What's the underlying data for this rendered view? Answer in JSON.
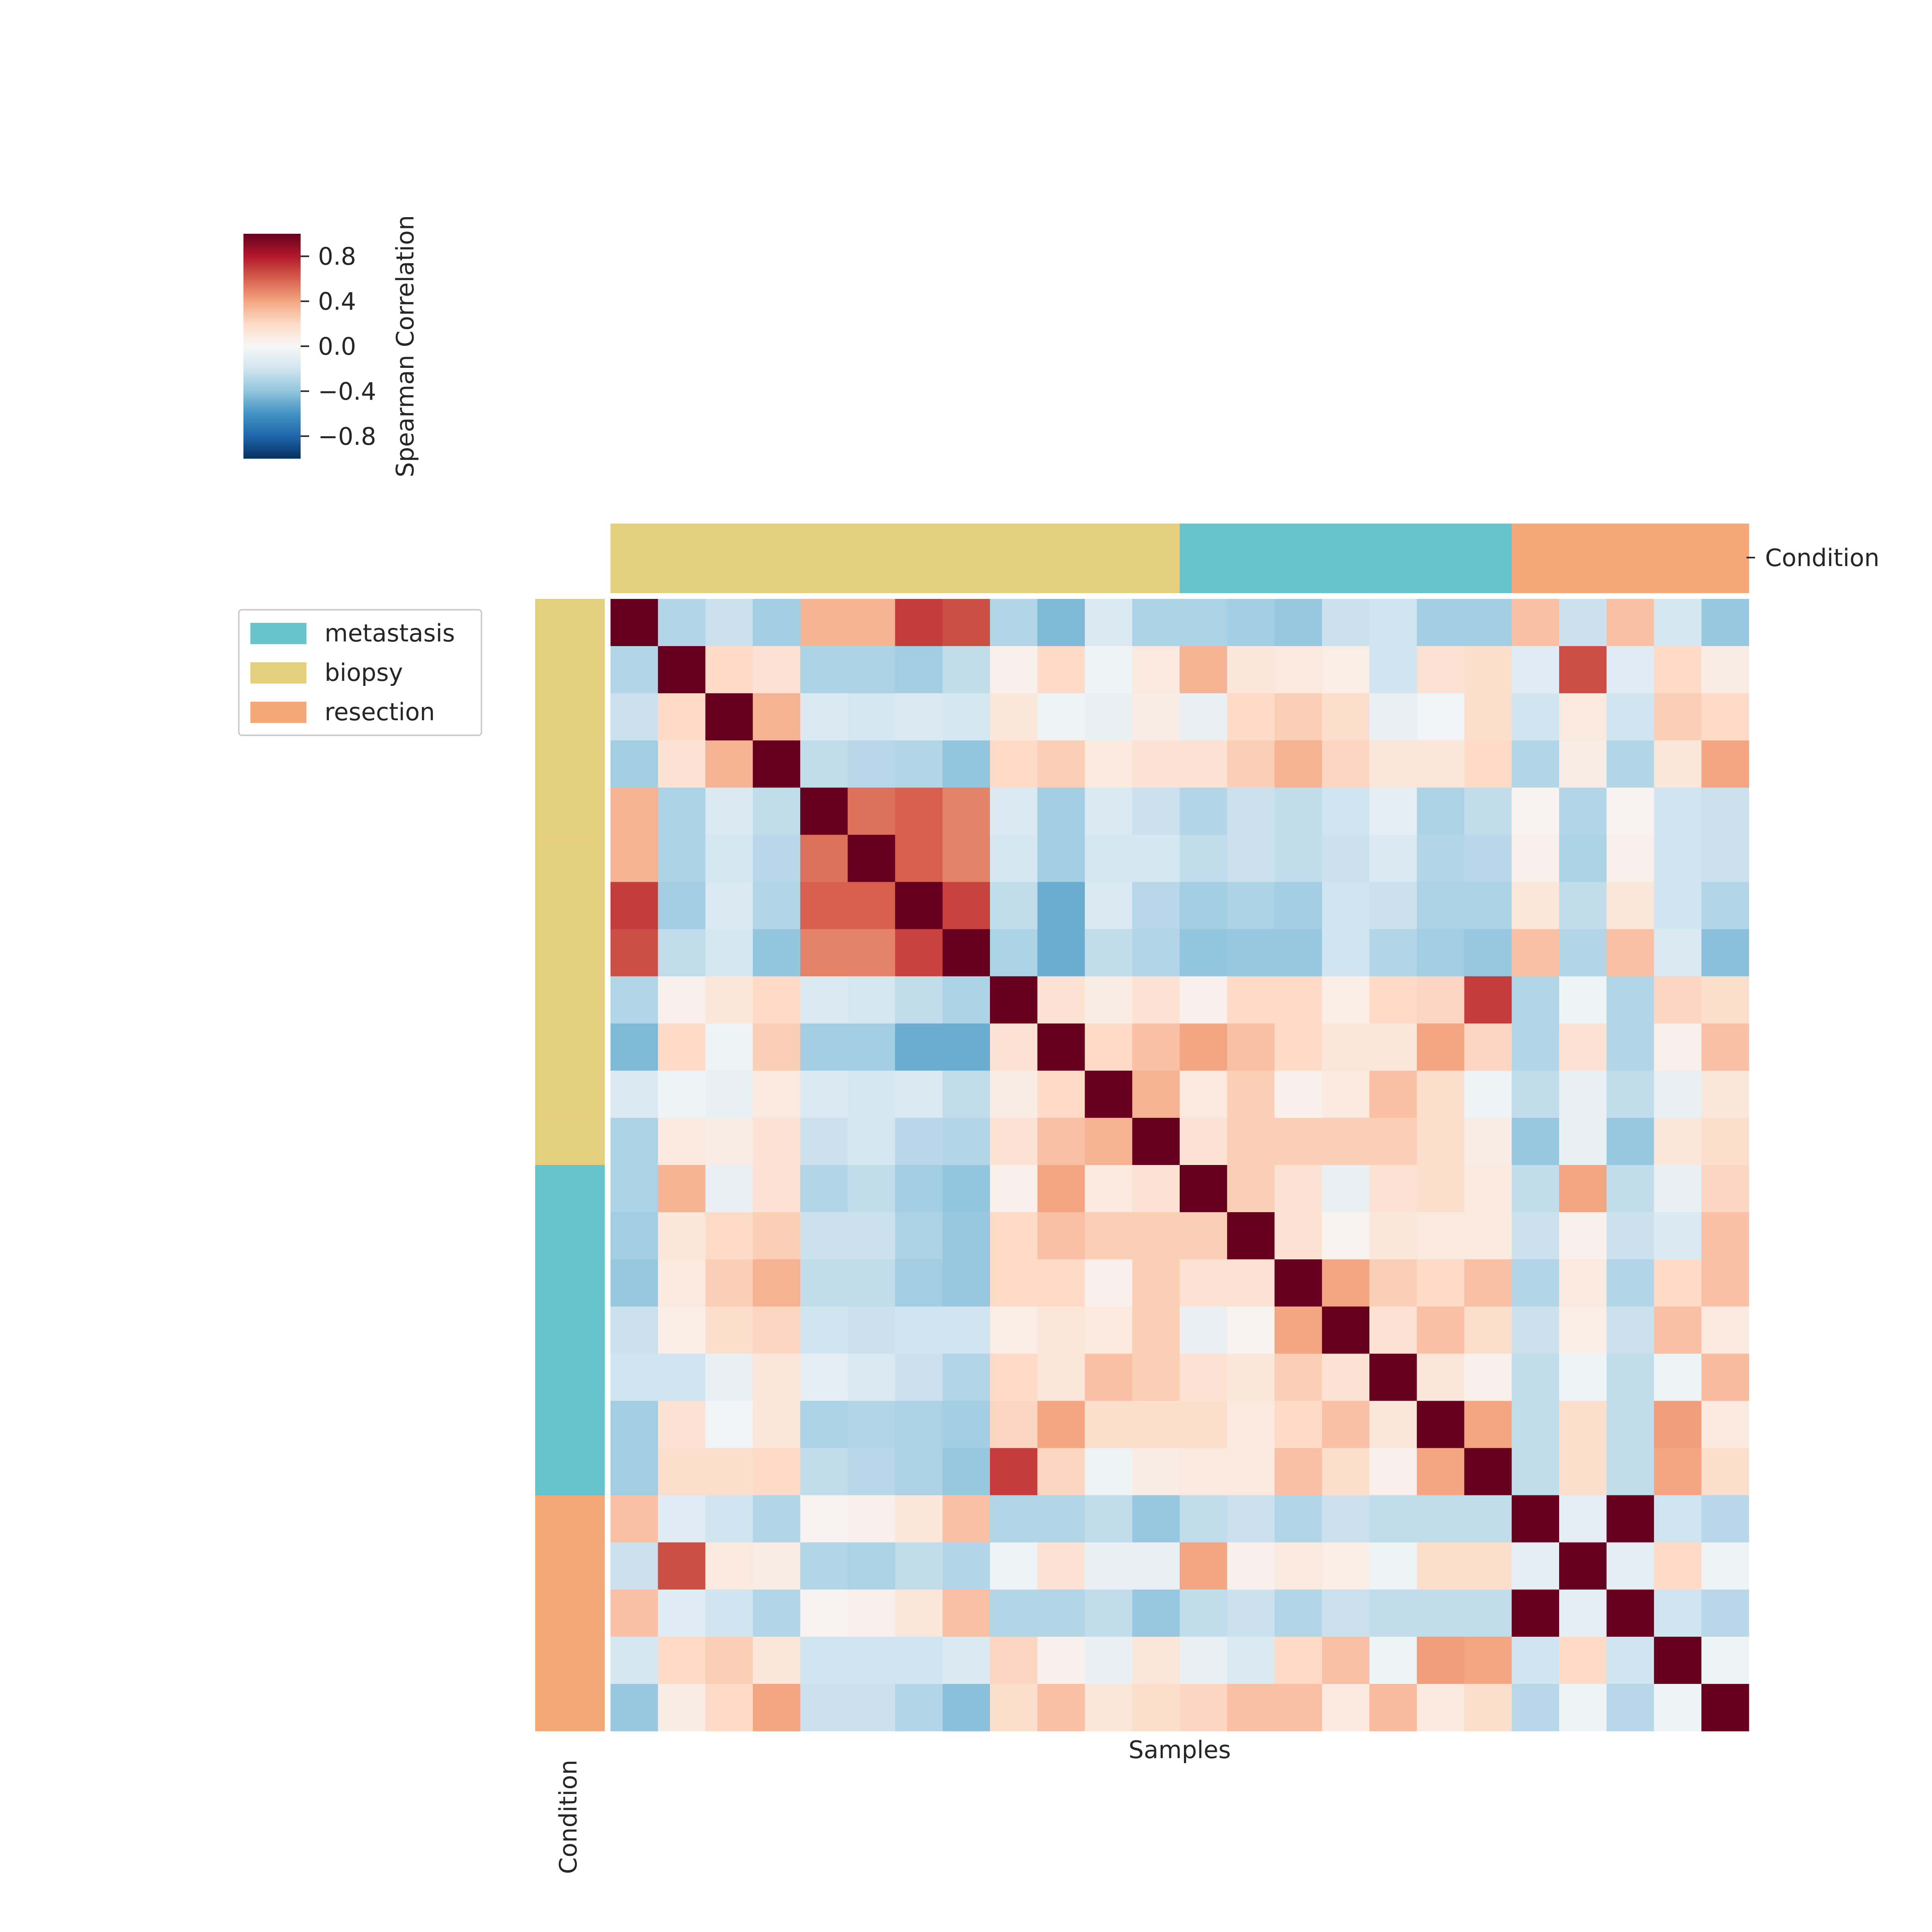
{
  "chart_data": {
    "type": "heatmap",
    "title": "",
    "xlabel": "Samples",
    "ylabel": "",
    "row_colors_label": "Condition",
    "col_colors_label": "Condition",
    "colorbar": {
      "label": "Spearman Correlation",
      "vmin": -1,
      "vmax": 1,
      "ticks": [
        0.8,
        0.4,
        0.0,
        -0.4,
        -0.8
      ],
      "tick_labels": [
        "0.8",
        "0.4",
        "0.0",
        "−0.4",
        "−0.8"
      ],
      "colormap": "RdBu_r"
    },
    "legend": {
      "placement": "upper-left",
      "entries": [
        {
          "label": "metastasis",
          "color": "#67c3ca"
        },
        {
          "label": "biopsy",
          "color": "#e4cf7e"
        },
        {
          "label": "resection",
          "color": "#f6a777"
        }
      ]
    },
    "condition_colors": {
      "biopsy": "#e4cf7e",
      "metastasis": "#67c3ca",
      "resection": "#f6a777"
    },
    "sample_conditions": [
      "biopsy",
      "biopsy",
      "biopsy",
      "biopsy",
      "biopsy",
      "biopsy",
      "biopsy",
      "biopsy",
      "biopsy",
      "biopsy",
      "biopsy",
      "biopsy",
      "metastasis",
      "metastasis",
      "metastasis",
      "metastasis",
      "metastasis",
      "metastasis",
      "metastasis",
      "resection",
      "resection",
      "resection",
      "resection",
      "resection"
    ],
    "values": [
      [
        1.0,
        -0.3,
        -0.22,
        -0.35,
        0.35,
        0.35,
        0.7,
        0.65,
        -0.3,
        -0.45,
        -0.15,
        -0.32,
        -0.32,
        -0.35,
        -0.38,
        -0.22,
        -0.2,
        -0.35,
        -0.35,
        0.3,
        -0.22,
        0.3,
        -0.18,
        -0.38
      ],
      [
        -0.3,
        1.0,
        0.2,
        0.15,
        -0.32,
        -0.32,
        -0.35,
        -0.25,
        0.05,
        0.2,
        -0.05,
        0.1,
        0.35,
        0.12,
        0.1,
        0.07,
        -0.2,
        0.15,
        0.18,
        -0.12,
        0.65,
        -0.12,
        0.2,
        0.08
      ],
      [
        -0.22,
        0.2,
        1.0,
        0.35,
        -0.15,
        -0.18,
        -0.15,
        -0.18,
        0.12,
        -0.05,
        -0.08,
        0.08,
        -0.08,
        0.2,
        0.25,
        0.18,
        -0.08,
        -0.03,
        0.18,
        -0.2,
        0.1,
        -0.2,
        0.25,
        0.2
      ],
      [
        -0.35,
        0.15,
        0.35,
        1.0,
        -0.25,
        -0.28,
        -0.3,
        -0.4,
        0.2,
        0.25,
        0.1,
        0.15,
        0.15,
        0.25,
        0.35,
        0.22,
        0.12,
        0.12,
        0.2,
        -0.3,
        0.08,
        -0.3,
        0.12,
        0.4
      ],
      [
        0.35,
        -0.32,
        -0.15,
        -0.25,
        1.0,
        0.55,
        0.6,
        0.5,
        -0.15,
        -0.35,
        -0.15,
        -0.22,
        -0.3,
        -0.22,
        -0.25,
        -0.2,
        -0.1,
        -0.32,
        -0.25,
        0.03,
        -0.3,
        0.03,
        -0.2,
        -0.22
      ],
      [
        0.35,
        -0.32,
        -0.18,
        -0.28,
        0.55,
        1.0,
        0.6,
        0.5,
        -0.18,
        -0.35,
        -0.18,
        -0.18,
        -0.25,
        -0.22,
        -0.25,
        -0.22,
        -0.15,
        -0.3,
        -0.28,
        0.05,
        -0.32,
        0.05,
        -0.2,
        -0.22
      ],
      [
        0.7,
        -0.35,
        -0.15,
        -0.3,
        0.6,
        0.6,
        1.0,
        0.68,
        -0.25,
        -0.5,
        -0.15,
        -0.28,
        -0.35,
        -0.32,
        -0.35,
        -0.2,
        -0.22,
        -0.32,
        -0.32,
        0.12,
        -0.25,
        0.12,
        -0.2,
        -0.3
      ],
      [
        0.65,
        -0.25,
        -0.18,
        -0.4,
        0.5,
        0.5,
        0.68,
        1.0,
        -0.32,
        -0.5,
        -0.25,
        -0.3,
        -0.4,
        -0.38,
        -0.38,
        -0.2,
        -0.3,
        -0.35,
        -0.38,
        0.3,
        -0.3,
        0.3,
        -0.15,
        -0.42
      ],
      [
        -0.3,
        0.05,
        0.12,
        0.2,
        -0.15,
        -0.18,
        -0.25,
        -0.32,
        1.0,
        0.15,
        0.08,
        0.15,
        0.05,
        0.2,
        0.2,
        0.07,
        0.2,
        0.22,
        0.7,
        -0.3,
        -0.05,
        -0.3,
        0.22,
        0.18
      ],
      [
        -0.45,
        0.2,
        -0.05,
        0.25,
        -0.35,
        -0.35,
        -0.5,
        -0.5,
        0.15,
        1.0,
        0.2,
        0.3,
        0.4,
        0.3,
        0.2,
        0.12,
        0.12,
        0.4,
        0.22,
        -0.3,
        0.15,
        -0.3,
        0.05,
        0.3
      ],
      [
        -0.15,
        -0.05,
        -0.08,
        0.1,
        -0.15,
        -0.18,
        -0.15,
        -0.25,
        0.08,
        0.2,
        1.0,
        0.35,
        0.1,
        0.25,
        0.05,
        0.1,
        0.3,
        0.18,
        -0.05,
        -0.25,
        -0.08,
        -0.25,
        -0.08,
        0.12
      ],
      [
        -0.32,
        0.1,
        0.08,
        0.15,
        -0.22,
        -0.18,
        -0.28,
        -0.3,
        0.15,
        0.3,
        0.35,
        1.0,
        0.15,
        0.25,
        0.25,
        0.25,
        0.25,
        0.18,
        0.08,
        -0.38,
        -0.08,
        -0.38,
        0.12,
        0.18
      ],
      [
        -0.32,
        0.35,
        -0.08,
        0.15,
        -0.3,
        -0.25,
        -0.35,
        -0.4,
        0.05,
        0.4,
        0.1,
        0.15,
        1.0,
        0.25,
        0.15,
        -0.08,
        0.15,
        0.18,
        0.1,
        -0.25,
        0.4,
        -0.25,
        -0.08,
        0.22
      ],
      [
        -0.35,
        0.12,
        0.2,
        0.25,
        -0.22,
        -0.22,
        -0.32,
        -0.38,
        0.2,
        0.3,
        0.25,
        0.25,
        0.25,
        1.0,
        0.15,
        0.03,
        0.12,
        0.1,
        0.1,
        -0.22,
        0.05,
        -0.22,
        -0.15,
        0.3
      ],
      [
        -0.38,
        0.1,
        0.25,
        0.35,
        -0.25,
        -0.25,
        -0.35,
        -0.38,
        0.2,
        0.2,
        0.05,
        0.25,
        0.15,
        0.15,
        1.0,
        0.4,
        0.25,
        0.2,
        0.3,
        -0.3,
        0.1,
        -0.3,
        0.2,
        0.3
      ],
      [
        -0.22,
        0.07,
        0.18,
        0.22,
        -0.2,
        -0.22,
        -0.2,
        -0.2,
        0.07,
        0.12,
        0.1,
        0.25,
        -0.08,
        0.03,
        0.4,
        1.0,
        0.15,
        0.3,
        0.18,
        -0.22,
        0.07,
        -0.22,
        0.3,
        0.1
      ],
      [
        -0.2,
        -0.2,
        -0.08,
        0.12,
        -0.1,
        -0.15,
        -0.22,
        -0.3,
        0.2,
        0.12,
        0.3,
        0.25,
        0.15,
        0.12,
        0.25,
        0.15,
        1.0,
        0.12,
        0.05,
        -0.25,
        -0.05,
        -0.25,
        -0.05,
        0.32
      ],
      [
        -0.35,
        0.15,
        -0.03,
        0.12,
        -0.32,
        -0.3,
        -0.32,
        -0.35,
        0.22,
        0.4,
        0.18,
        0.18,
        0.18,
        0.1,
        0.2,
        0.3,
        0.12,
        1.0,
        0.4,
        -0.25,
        0.18,
        -0.25,
        0.42,
        0.1
      ],
      [
        -0.35,
        0.18,
        0.18,
        0.2,
        -0.25,
        -0.28,
        -0.32,
        -0.38,
        0.7,
        0.22,
        -0.05,
        0.08,
        0.1,
        0.1,
        0.3,
        0.18,
        0.05,
        0.4,
        1.0,
        -0.25,
        0.18,
        -0.25,
        0.4,
        0.18
      ],
      [
        0.3,
        -0.12,
        -0.2,
        -0.3,
        0.03,
        0.05,
        0.12,
        0.3,
        -0.3,
        -0.3,
        -0.25,
        -0.38,
        -0.25,
        -0.22,
        -0.3,
        -0.22,
        -0.25,
        -0.25,
        -0.25,
        1.0,
        -0.1,
        1.0,
        -0.2,
        -0.28
      ],
      [
        -0.22,
        0.65,
        0.1,
        0.08,
        -0.3,
        -0.32,
        -0.25,
        -0.3,
        -0.05,
        0.15,
        -0.08,
        -0.08,
        0.4,
        0.05,
        0.1,
        0.07,
        -0.05,
        0.18,
        0.18,
        -0.1,
        1.0,
        -0.1,
        0.2,
        -0.05
      ],
      [
        0.3,
        -0.12,
        -0.2,
        -0.3,
        0.03,
        0.05,
        0.12,
        0.3,
        -0.3,
        -0.3,
        -0.25,
        -0.38,
        -0.25,
        -0.22,
        -0.3,
        -0.22,
        -0.25,
        -0.25,
        -0.25,
        1.0,
        -0.1,
        1.0,
        -0.2,
        -0.28
      ],
      [
        -0.18,
        0.2,
        0.25,
        0.12,
        -0.2,
        -0.2,
        -0.2,
        -0.15,
        0.22,
        0.05,
        -0.08,
        0.12,
        -0.08,
        -0.15,
        0.2,
        0.3,
        -0.05,
        0.42,
        0.4,
        -0.2,
        0.2,
        -0.2,
        1.0,
        -0.05
      ],
      [
        -0.38,
        0.08,
        0.2,
        0.4,
        -0.22,
        -0.22,
        -0.3,
        -0.42,
        0.18,
        0.3,
        0.12,
        0.18,
        0.22,
        0.3,
        0.3,
        0.1,
        0.32,
        0.1,
        0.18,
        -0.28,
        -0.05,
        -0.28,
        -0.05,
        1.0
      ]
    ]
  }
}
